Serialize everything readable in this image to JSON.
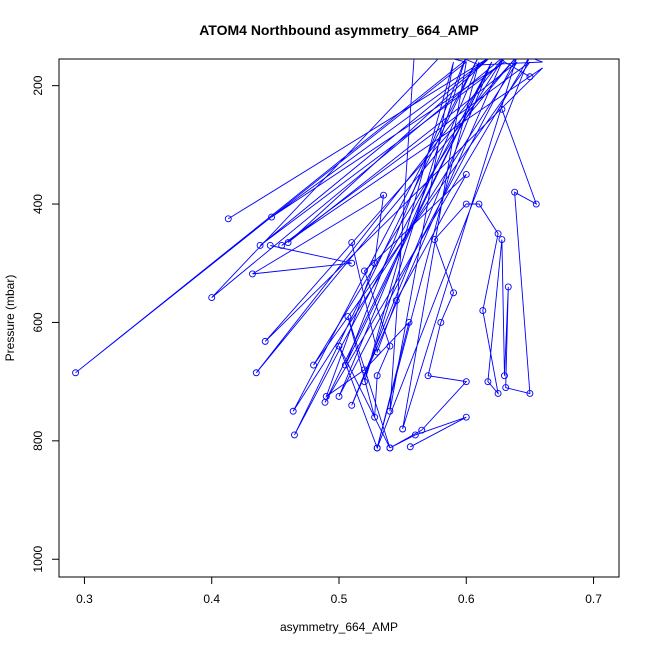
{
  "chart_data": {
    "type": "line",
    "title": "ATOM4 Northbound asymmetry_664_AMP",
    "xlabel": "asymmetry_664_AMP",
    "ylabel": "Pressure (mbar)",
    "xlim": [
      0.28,
      0.72
    ],
    "ylim": [
      1030,
      155
    ],
    "y_inverted": true,
    "grid": false,
    "x_ticks": [
      0.3,
      0.4,
      0.5,
      0.6,
      0.7
    ],
    "x_tick_labels": [
      "0.3",
      "0.4",
      "0.5",
      "0.6",
      "0.7"
    ],
    "y_ticks": [
      200,
      400,
      600,
      800,
      1000
    ],
    "y_tick_labels": [
      "200",
      "400",
      "600",
      "800",
      "1000"
    ],
    "color": "#0000ff",
    "marker": "open-circle",
    "series": [
      {
        "x": [
          0.65,
          0.63,
          0.62,
          0.66,
          0.61,
          0.56,
          0.64,
          0.6,
          0.615,
          0.293,
          0.6,
          0.58,
          0.4,
          0.63,
          0.435,
          0.64,
          0.442,
          0.66,
          0.455,
          0.65,
          0.48,
          0.63,
          0.51,
          0.62,
          0.505,
          0.6,
          0.52,
          0.59,
          0.54,
          0.56
        ],
        "y": [
          185,
          160,
          130,
          160,
          165,
          120,
          150,
          140,
          130,
          685,
          160,
          150,
          558,
          150,
          685,
          150,
          632,
          170,
          470,
          160,
          672,
          150,
          740,
          160,
          672,
          150,
          700,
          160,
          750,
          120
        ]
      },
      {
        "x": [
          0.413,
          0.62,
          0.447,
          0.63,
          0.438,
          0.62,
          0.46,
          0.64,
          0.464,
          0.61,
          0.465,
          0.62,
          0.489,
          0.65,
          0.53,
          0.61,
          0.5,
          0.64,
          0.55,
          0.6
        ],
        "y": [
          425,
          150,
          422,
          160,
          470,
          150,
          465,
          160,
          750,
          150,
          790,
          160,
          735,
          150,
          812,
          160,
          725,
          150,
          780,
          160
        ]
      },
      {
        "x": [
          0.446,
          0.51,
          0.432,
          0.535,
          0.528,
          0.49,
          0.52,
          0.555,
          0.53,
          0.5,
          0.54,
          0.507,
          0.528,
          0.53,
          0.54,
          0.52,
          0.6,
          0.545,
          0.53,
          0.51
        ],
        "y": [
          470,
          500,
          518,
          385,
          500,
          725,
          680,
          600,
          812,
          640,
          812,
          590,
          760,
          690,
          640,
          513,
          350,
          563,
          650,
          465
        ]
      },
      {
        "x": [
          0.556,
          0.6,
          0.56,
          0.54,
          0.565,
          0.6,
          0.57,
          0.58,
          0.59,
          0.575,
          0.6,
          0.61,
          0.625,
          0.613,
          0.625,
          0.617,
          0.628,
          0.63,
          0.633,
          0.631,
          0.65,
          0.638,
          0.655,
          0.628
        ],
        "y": [
          810,
          760,
          790,
          812,
          782,
          700,
          690,
          600,
          550,
          460,
          400,
          400,
          450,
          580,
          720,
          700,
          460,
          690,
          540,
          710,
          720,
          380,
          400,
          240
        ]
      }
    ]
  }
}
